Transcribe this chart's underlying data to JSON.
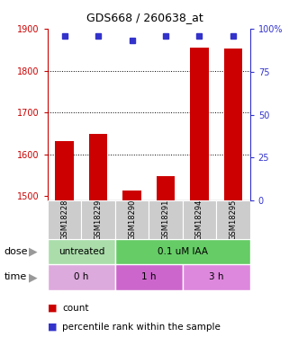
{
  "title": "GDS668 / 260638_at",
  "samples": [
    "GSM18228",
    "GSM18229",
    "GSM18290",
    "GSM18291",
    "GSM18294",
    "GSM18295"
  ],
  "counts": [
    1632,
    1648,
    1513,
    1548,
    1855,
    1852
  ],
  "percentile_ranks": [
    96,
    96,
    93,
    96,
    96,
    96
  ],
  "ylim_left": [
    1490,
    1900
  ],
  "ylim_right": [
    0,
    100
  ],
  "yticks_left": [
    1500,
    1600,
    1700,
    1800,
    1900
  ],
  "yticks_right": [
    0,
    25,
    50,
    75,
    100
  ],
  "bar_color": "#cc0000",
  "dot_color": "#3333cc",
  "dose_labels": [
    {
      "label": "untreated",
      "start": 0,
      "end": 2,
      "color": "#aaddaa"
    },
    {
      "label": "0.1 uM IAA",
      "start": 2,
      "end": 6,
      "color": "#66cc66"
    }
  ],
  "time_labels": [
    {
      "label": "0 h",
      "start": 0,
      "end": 2,
      "color": "#ddaadd"
    },
    {
      "label": "1 h",
      "start": 2,
      "end": 4,
      "color": "#cc66cc"
    },
    {
      "label": "3 h",
      "start": 4,
      "end": 6,
      "color": "#dd88dd"
    }
  ],
  "left_tick_color": "#cc0000",
  "right_tick_color": "#3333cc",
  "grid_color": "#000000",
  "background_color": "#ffffff",
  "label_area_color": "#cccccc",
  "dose_row_label": "dose",
  "time_row_label": "time",
  "right_top_label": "100%"
}
